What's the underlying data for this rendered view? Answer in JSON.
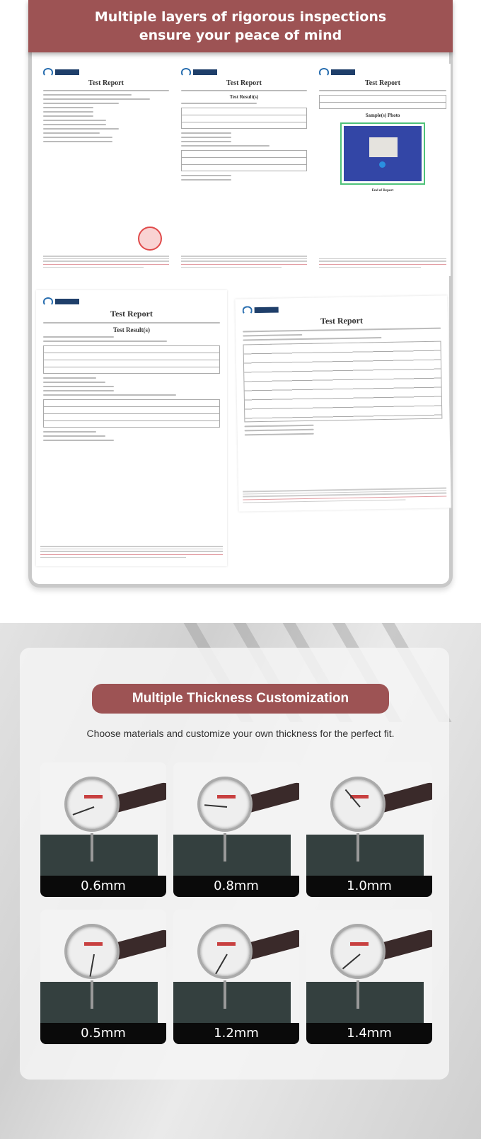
{
  "header": {
    "line1": "Multiple layers of rigorous inspections",
    "line2": "ensure your peace of mind"
  },
  "reports": {
    "title": "Test Report",
    "result_heading": "Test Result(s)",
    "photo_heading": "Sample(s) Photo",
    "end_label": "End of Report"
  },
  "thickness": {
    "title": "Multiple Thickness Customization",
    "subtitle": "Choose materials and customize your own thickness for the perfect fit.",
    "accent": "#9d5354",
    "options": [
      {
        "label": "0.6mm"
      },
      {
        "label": "0.8mm"
      },
      {
        "label": "1.0mm"
      },
      {
        "label": "0.5mm"
      },
      {
        "label": "1.2mm"
      },
      {
        "label": "1.4mm"
      }
    ]
  }
}
